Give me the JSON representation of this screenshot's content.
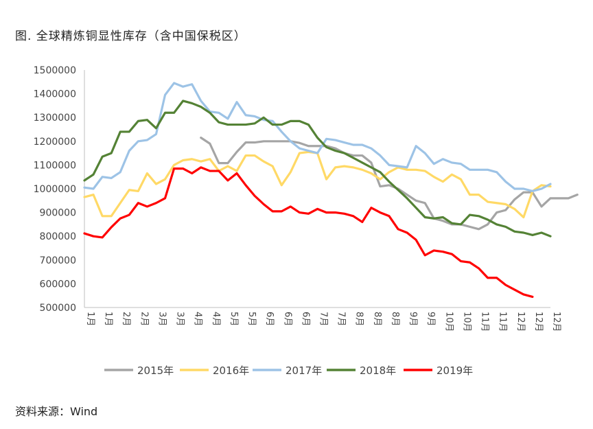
{
  "title": "图.  全球精炼铜显性库存（含中国保税区）",
  "source": "资料来源：Wind",
  "chart_data": {
    "type": "line",
    "title": "图.  全球精炼铜显性库存（含中国保税区）",
    "ylim": [
      500000,
      1500000
    ],
    "yticks": [
      "500000",
      "600000",
      "700000",
      "800000",
      "900000",
      "1000000",
      "1100000",
      "1200000",
      "1300000",
      "1400000",
      "1500000"
    ],
    "x_tick_labels": [
      "1月",
      "1月",
      "2月",
      "2月",
      "3月",
      "3月",
      "4月",
      "4月",
      "5月",
      "5月",
      "6月",
      "6月",
      "6月",
      "7月",
      "7月",
      "8月",
      "8月",
      "8月",
      "9月",
      "9月",
      "10月",
      "10月",
      "11月",
      "11月",
      "12月",
      "12月",
      "12月"
    ],
    "points_per_series": 53,
    "legend_position": "bottom",
    "grid": false,
    "series": [
      {
        "name": "2015年",
        "color": "#a5a5a5",
        "start_index": 13,
        "values": [
          1215000,
          1190000,
          1108000,
          1108000,
          1155000,
          1195000,
          1195000,
          1200000,
          1200000,
          1200000,
          1200000,
          1193000,
          1180000,
          1180000,
          1180000,
          1170000,
          1150000,
          1140000,
          1140000,
          1110000,
          1010000,
          1015000,
          1000000,
          975000,
          950000,
          940000,
          875000,
          865000,
          850000,
          850000,
          840000,
          830000,
          850000,
          900000,
          910000,
          955000,
          985000,
          985000,
          925000,
          960000,
          960000,
          960000,
          975000
        ]
      },
      {
        "name": "2016年",
        "color": "#ffd966",
        "start_index": 0,
        "values": [
          965000,
          975000,
          885000,
          885000,
          940000,
          995000,
          990000,
          1065000,
          1020000,
          1040000,
          1100000,
          1120000,
          1125000,
          1115000,
          1125000,
          1075000,
          1095000,
          1075000,
          1140000,
          1140000,
          1115000,
          1095000,
          1015000,
          1070000,
          1150000,
          1155000,
          1150000,
          1040000,
          1090000,
          1095000,
          1090000,
          1080000,
          1065000,
          1040000,
          1070000,
          1090000,
          1080000,
          1080000,
          1075000,
          1050000,
          1030000,
          1060000,
          1040000,
          975000,
          975000,
          945000,
          940000,
          935000,
          915000,
          880000,
          990000,
          1015000,
          1010000
        ]
      },
      {
        "name": "2017年",
        "color": "#9dc3e6",
        "start_index": 0,
        "values": [
          1005000,
          1000000,
          1050000,
          1045000,
          1070000,
          1160000,
          1200000,
          1205000,
          1230000,
          1395000,
          1445000,
          1430000,
          1440000,
          1370000,
          1325000,
          1320000,
          1295000,
          1365000,
          1310000,
          1305000,
          1290000,
          1285000,
          1240000,
          1200000,
          1170000,
          1160000,
          1150000,
          1210000,
          1205000,
          1195000,
          1185000,
          1185000,
          1170000,
          1140000,
          1100000,
          1095000,
          1090000,
          1180000,
          1150000,
          1105000,
          1125000,
          1110000,
          1105000,
          1080000,
          1080000,
          1080000,
          1070000,
          1030000,
          1000000,
          1000000,
          990000,
          1000000,
          1020000
        ]
      },
      {
        "name": "2018年",
        "color": "#548235",
        "start_index": 0,
        "values": [
          1035000,
          1060000,
          1135000,
          1150000,
          1240000,
          1240000,
          1285000,
          1290000,
          1255000,
          1320000,
          1320000,
          1370000,
          1360000,
          1345000,
          1320000,
          1280000,
          1270000,
          1270000,
          1270000,
          1275000,
          1300000,
          1270000,
          1270000,
          1285000,
          1285000,
          1270000,
          1215000,
          1175000,
          1160000,
          1150000,
          1130000,
          1110000,
          1090000,
          1070000,
          1030000,
          995000,
          960000,
          920000,
          880000,
          875000,
          880000,
          855000,
          850000,
          890000,
          885000,
          870000,
          850000,
          840000,
          820000,
          815000,
          805000,
          815000,
          800000
        ]
      },
      {
        "name": "2019年",
        "color": "#ff0000",
        "start_index": 0,
        "values": [
          812000,
          800000,
          795000,
          838000,
          875000,
          890000,
          940000,
          925000,
          940000,
          960000,
          1085000,
          1085000,
          1065000,
          1090000,
          1075000,
          1075000,
          1035000,
          1065000,
          1015000,
          970000,
          935000,
          905000,
          905000,
          925000,
          900000,
          895000,
          915000,
          900000,
          900000,
          895000,
          885000,
          860000,
          920000,
          900000,
          885000,
          830000,
          815000,
          785000,
          720000,
          740000,
          735000,
          725000,
          695000,
          690000,
          665000,
          625000,
          625000,
          595000,
          575000,
          555000,
          545000
        ]
      }
    ]
  }
}
